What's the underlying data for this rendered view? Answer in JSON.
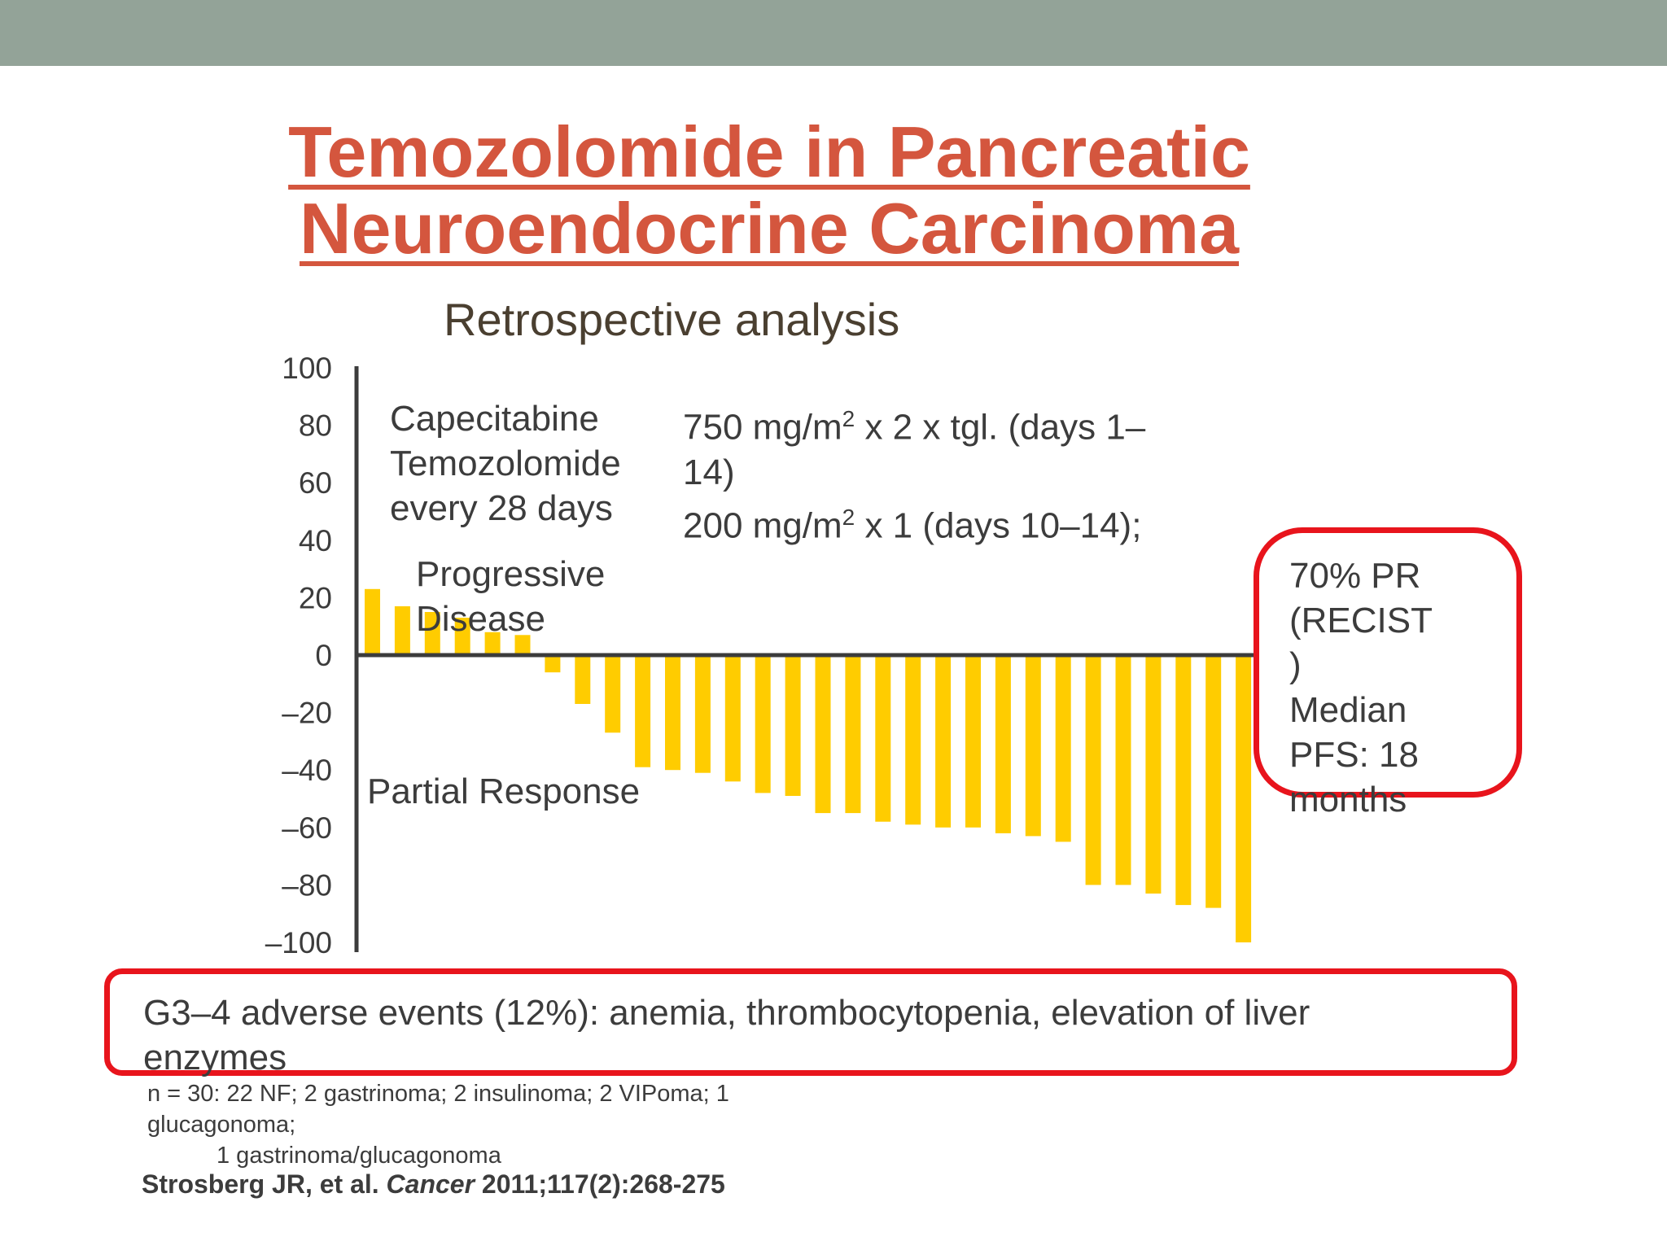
{
  "slide": {
    "title_line1": "Temozolomide in Pancreatic",
    "title_line2": "Neuroendocrine Carcinoma",
    "subtitle": "Retrospective analysis",
    "colors": {
      "topbar": "#93a398",
      "title": "#d4563e",
      "bar": "#ffcc00",
      "highlight": "#e8141c"
    }
  },
  "regimen": {
    "drug1": "Capecitabine",
    "drug2": "Temozolomide",
    "schedule": "every 28 days",
    "dose_line1_pre": "750 mg/m",
    "dose_line1_sup": "2",
    "dose_line1_post": " x 2 x tgl. (days 1–",
    "dose_line2": "14)",
    "dose_line3_pre": "200 mg/m",
    "dose_line3_sup": "2",
    "dose_line3_post": " x 1 (days 10–14);"
  },
  "labels": {
    "progressive_1": "Progressive",
    "progressive_2": "Disease",
    "partial_response": "Partial Response"
  },
  "summary_box": {
    "line1": "70% PR",
    "line2": "(RECIST",
    "line3": ")",
    "line4": "Median",
    "line5": "PFS: 18",
    "line6": "months"
  },
  "adverse_events": "G3–4 adverse events (12%): anemia, thrombocytopenia, elevation of liver enzymes",
  "footnote": {
    "line1": "n = 30: 22 NF; 2 gastrinoma; 2 insulinoma; 2 VIPoma; 1 glucagonoma;",
    "line2": "1 gastrinoma/glucagonoma"
  },
  "citation": {
    "authors": "Strosberg JR, et al. ",
    "journal": "Cancer",
    "details": " 2011;117(2):268-275"
  },
  "chart_data": {
    "type": "bar",
    "xlabel": "",
    "ylabel": "",
    "ylim": [
      -100,
      100
    ],
    "yticks": [
      100,
      80,
      60,
      40,
      20,
      0,
      -20,
      -40,
      -60,
      -80,
      -100
    ],
    "ytick_labels": [
      "100",
      "80",
      "60",
      "40",
      "20",
      "0",
      "–20",
      "–40",
      "–60",
      "–80",
      "–100"
    ],
    "grid": false,
    "values": [
      23,
      17,
      15,
      13,
      8,
      7,
      -6,
      -17,
      -27,
      -39,
      -40,
      -41,
      -44,
      -48,
      -49,
      -55,
      -55,
      -58,
      -59,
      -60,
      -60,
      -62,
      -63,
      -65,
      -80,
      -80,
      -83,
      -87,
      -88,
      -100
    ]
  }
}
